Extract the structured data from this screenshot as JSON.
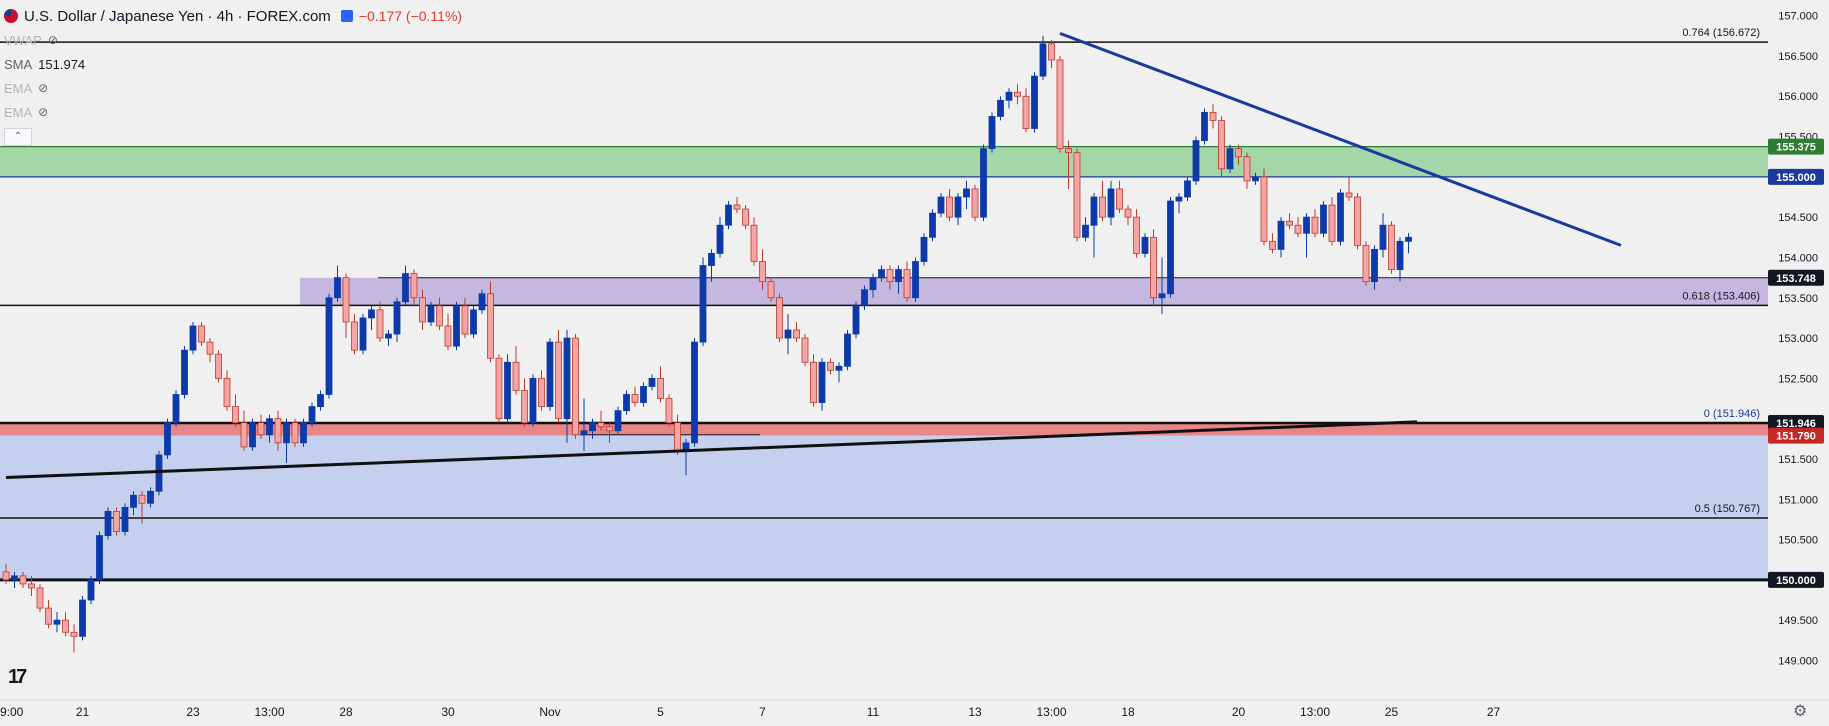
{
  "legend": {
    "symbol_title": "U.S. Dollar / Japanese Yen · 4h · FOREX.com",
    "change": "−0.177 (−0.11%)",
    "indicators": [
      {
        "name": "VWAP",
        "value": "",
        "hidden": true
      },
      {
        "name": "SMA",
        "value": "151.974",
        "hidden": false
      },
      {
        "name": "EMA",
        "value": "",
        "hidden": true
      },
      {
        "name": "EMA",
        "value": "",
        "hidden": true
      }
    ],
    "collapse_label": "⌃"
  },
  "icons": {
    "logo": "tradingview-logo",
    "settings": "settings-icon",
    "eye": "eye-off-icon"
  },
  "logo_text": "17",
  "settings_glyph": "⚙",
  "colors": {
    "background": "#f0f0f0",
    "up_candle": "#0d3aa8",
    "down_candle": "#f4a6a6",
    "down_outline": "#c0392b",
    "green_zone": "#a5d6a7",
    "purple_zone": "#c5b8e0",
    "red_zone": "#e57373",
    "blue_zone": "#c5d0ef",
    "trendline_blue": "#1a3a9e",
    "trendline_black": "#111111"
  },
  "chart_data": {
    "type": "candlestick",
    "symbol": "USDJPY",
    "timeframe": "4h",
    "ylim": [
      148.4,
      157.4
    ],
    "y_ticks": [
      "157.000",
      "156.500",
      "156.000",
      "155.500",
      "155.000",
      "154.500",
      "154.000",
      "153.500",
      "153.000",
      "152.500",
      "152.000",
      "151.500",
      "151.000",
      "150.500",
      "150.000",
      "149.500",
      "149.000"
    ],
    "x_labels": [
      {
        "bar": 0,
        "label": "9:00"
      },
      {
        "bar": 9,
        "label": "21"
      },
      {
        "bar": 22,
        "label": "23"
      },
      {
        "bar": 31,
        "label": "13:00"
      },
      {
        "bar": 40,
        "label": "28"
      },
      {
        "bar": 52,
        "label": "30"
      },
      {
        "bar": 64,
        "label": "Nov"
      },
      {
        "bar": 77,
        "label": "5"
      },
      {
        "bar": 89,
        "label": "7"
      },
      {
        "bar": 102,
        "label": "11"
      },
      {
        "bar": 114,
        "label": "13"
      },
      {
        "bar": 123,
        "label": "13:00"
      },
      {
        "bar": 132,
        "label": "18"
      },
      {
        "bar": 145,
        "label": "20"
      },
      {
        "bar": 154,
        "label": "13:00"
      },
      {
        "bar": 163,
        "label": "25"
      },
      {
        "bar": 175,
        "label": "27"
      }
    ],
    "zones": [
      {
        "name": "resistance",
        "from": 155.0,
        "to": 155.375
      },
      {
        "name": "support",
        "from": 153.406,
        "to": 153.748
      },
      {
        "name": "support-red",
        "from": 151.79,
        "to": 151.946
      },
      {
        "name": "support-blue",
        "from": 150.0,
        "to": 151.79
      }
    ],
    "hlines": [
      {
        "price": 156.672,
        "label": "0.764 (156.672)"
      },
      {
        "price": 153.406,
        "label": "0.618 (153.406)"
      },
      {
        "price": 151.946,
        "label": "0 (151.946)"
      },
      {
        "price": 150.767,
        "label": "0.5 (150.767)"
      },
      {
        "price": 150.0,
        "label": ""
      }
    ],
    "price_tags": [
      {
        "price": 155.375,
        "label": "155.375",
        "color": "#2e7d32"
      },
      {
        "price": 155.0,
        "label": "155.000",
        "color": "#1a3a9e"
      },
      {
        "price": 153.748,
        "label": "153.748",
        "color": "#131722"
      },
      {
        "price": 151.946,
        "label": "151.946",
        "color": "#131722"
      },
      {
        "price": 151.79,
        "label": "151.790",
        "color": "#c62828"
      },
      {
        "price": 150.0,
        "label": "150.000",
        "color": "#131722"
      }
    ],
    "trendlines": [
      {
        "name": "descending-resistance",
        "from": [
          124,
          156.78
        ],
        "to": [
          190,
          154.15
        ]
      },
      {
        "name": "rising-support",
        "from": [
          0,
          151.27
        ],
        "to": [
          166,
          151.96
        ]
      }
    ],
    "candles": [
      [
        150.1,
        150.2,
        149.95,
        150.0
      ],
      [
        150.0,
        150.1,
        149.9,
        150.05
      ],
      [
        150.05,
        150.1,
        149.9,
        149.95
      ],
      [
        149.95,
        150.05,
        149.8,
        149.9
      ],
      [
        149.9,
        149.95,
        149.6,
        149.65
      ],
      [
        149.65,
        149.75,
        149.4,
        149.45
      ],
      [
        149.45,
        149.6,
        149.35,
        149.5
      ],
      [
        149.5,
        149.6,
        149.3,
        149.35
      ],
      [
        149.35,
        149.45,
        149.1,
        149.3
      ],
      [
        149.3,
        149.8,
        149.25,
        149.75
      ],
      [
        149.75,
        150.05,
        149.7,
        150.0
      ],
      [
        150.0,
        150.6,
        149.95,
        150.55
      ],
      [
        150.55,
        150.9,
        150.5,
        150.85
      ],
      [
        150.85,
        150.9,
        150.55,
        150.6
      ],
      [
        150.6,
        150.95,
        150.55,
        150.9
      ],
      [
        150.9,
        151.1,
        150.8,
        151.05
      ],
      [
        151.05,
        151.1,
        150.7,
        150.95
      ],
      [
        150.95,
        151.15,
        150.9,
        151.1
      ],
      [
        151.1,
        151.6,
        151.05,
        151.55
      ],
      [
        151.55,
        152.0,
        151.5,
        151.95
      ],
      [
        151.95,
        152.35,
        151.9,
        152.3
      ],
      [
        152.3,
        152.9,
        152.25,
        152.85
      ],
      [
        152.85,
        153.2,
        152.8,
        153.15
      ],
      [
        153.15,
        153.2,
        152.9,
        152.95
      ],
      [
        152.95,
        153.0,
        152.7,
        152.8
      ],
      [
        152.8,
        152.85,
        152.45,
        152.5
      ],
      [
        152.5,
        152.6,
        152.1,
        152.15
      ],
      [
        152.15,
        152.3,
        151.9,
        151.95
      ],
      [
        151.95,
        152.1,
        151.6,
        151.65
      ],
      [
        151.65,
        152.0,
        151.6,
        151.95
      ],
      [
        151.95,
        152.05,
        151.75,
        151.8
      ],
      [
        151.8,
        152.05,
        151.7,
        152.0
      ],
      [
        152.0,
        152.1,
        151.6,
        151.7
      ],
      [
        151.7,
        152.0,
        151.45,
        151.95
      ],
      [
        151.95,
        152.0,
        151.65,
        151.7
      ],
      [
        151.7,
        152.0,
        151.65,
        151.95
      ],
      [
        151.95,
        152.2,
        151.9,
        152.15
      ],
      [
        152.15,
        152.35,
        152.1,
        152.3
      ],
      [
        152.3,
        153.55,
        152.25,
        153.5
      ],
      [
        153.5,
        153.9,
        153.45,
        153.75
      ],
      [
        153.75,
        153.8,
        153.0,
        153.2
      ],
      [
        153.2,
        153.3,
        152.8,
        152.85
      ],
      [
        152.85,
        153.3,
        152.8,
        153.25
      ],
      [
        153.25,
        153.4,
        153.1,
        153.35
      ],
      [
        153.35,
        153.45,
        152.95,
        153.0
      ],
      [
        153.0,
        153.1,
        152.9,
        153.05
      ],
      [
        153.05,
        153.5,
        152.95,
        153.45
      ],
      [
        153.45,
        153.9,
        153.4,
        153.8
      ],
      [
        153.8,
        153.85,
        153.4,
        153.5
      ],
      [
        153.5,
        153.6,
        153.1,
        153.2
      ],
      [
        153.2,
        153.45,
        153.15,
        153.4
      ],
      [
        153.4,
        153.5,
        153.1,
        153.15
      ],
      [
        153.15,
        153.3,
        152.85,
        152.9
      ],
      [
        152.9,
        153.45,
        152.85,
        153.4
      ],
      [
        153.4,
        153.5,
        153.0,
        153.05
      ],
      [
        153.05,
        153.4,
        153.0,
        153.35
      ],
      [
        153.35,
        153.6,
        153.3,
        153.55
      ],
      [
        153.55,
        153.7,
        152.7,
        152.75
      ],
      [
        152.75,
        152.8,
        151.95,
        152.0
      ],
      [
        152.0,
        152.8,
        151.95,
        152.7
      ],
      [
        152.7,
        152.9,
        152.3,
        152.35
      ],
      [
        152.35,
        152.5,
        151.9,
        151.95
      ],
      [
        151.95,
        152.55,
        151.9,
        152.5
      ],
      [
        152.5,
        152.6,
        152.1,
        152.15
      ],
      [
        152.15,
        153.0,
        152.1,
        152.95
      ],
      [
        152.95,
        153.1,
        151.95,
        152.0
      ],
      [
        152.0,
        153.1,
        151.7,
        153.0
      ],
      [
        153.0,
        153.05,
        151.75,
        151.8
      ],
      [
        151.8,
        152.25,
        151.6,
        151.85
      ],
      [
        151.85,
        152.0,
        151.75,
        151.95
      ],
      [
        151.95,
        152.1,
        151.85,
        151.9
      ],
      [
        151.9,
        151.95,
        151.7,
        151.85
      ],
      [
        151.85,
        152.15,
        151.8,
        152.1
      ],
      [
        152.1,
        152.35,
        152.05,
        152.3
      ],
      [
        152.3,
        152.4,
        152.15,
        152.2
      ],
      [
        152.2,
        152.45,
        152.15,
        152.4
      ],
      [
        152.4,
        152.55,
        152.35,
        152.5
      ],
      [
        152.5,
        152.65,
        152.2,
        152.25
      ],
      [
        152.25,
        152.3,
        151.9,
        151.95
      ],
      [
        151.95,
        152.05,
        151.55,
        151.6
      ],
      [
        151.6,
        151.75,
        151.3,
        151.7
      ],
      [
        151.7,
        153.0,
        151.65,
        152.95
      ],
      [
        152.95,
        154.0,
        152.9,
        153.9
      ],
      [
        153.9,
        154.1,
        153.7,
        154.05
      ],
      [
        154.05,
        154.5,
        154.0,
        154.4
      ],
      [
        154.4,
        154.7,
        154.35,
        154.65
      ],
      [
        154.65,
        154.75,
        154.55,
        154.6
      ],
      [
        154.6,
        154.65,
        154.35,
        154.4
      ],
      [
        154.4,
        154.5,
        153.9,
        153.95
      ],
      [
        153.95,
        154.1,
        153.6,
        153.7
      ],
      [
        153.7,
        153.75,
        153.45,
        153.5
      ],
      [
        153.5,
        153.55,
        152.95,
        153.0
      ],
      [
        153.0,
        153.3,
        152.8,
        153.1
      ],
      [
        153.1,
        153.2,
        152.95,
        153.0
      ],
      [
        153.0,
        153.05,
        152.65,
        152.7
      ],
      [
        152.7,
        152.8,
        152.15,
        152.2
      ],
      [
        152.2,
        152.75,
        152.1,
        152.7
      ],
      [
        152.7,
        152.75,
        152.55,
        152.6
      ],
      [
        152.6,
        152.7,
        152.45,
        152.65
      ],
      [
        152.65,
        153.1,
        152.6,
        153.05
      ],
      [
        153.05,
        153.45,
        153.0,
        153.4
      ],
      [
        153.4,
        153.65,
        153.35,
        153.6
      ],
      [
        153.6,
        153.8,
        153.5,
        153.75
      ],
      [
        153.75,
        153.9,
        153.7,
        153.85
      ],
      [
        153.85,
        153.9,
        153.6,
        153.7
      ],
      [
        153.7,
        153.9,
        153.55,
        153.85
      ],
      [
        153.85,
        153.95,
        153.45,
        153.5
      ],
      [
        153.5,
        154.0,
        153.45,
        153.95
      ],
      [
        153.95,
        154.3,
        153.9,
        154.25
      ],
      [
        154.25,
        154.6,
        154.2,
        154.55
      ],
      [
        154.55,
        154.8,
        154.5,
        154.75
      ],
      [
        154.75,
        154.85,
        154.45,
        154.5
      ],
      [
        154.5,
        154.8,
        154.4,
        154.75
      ],
      [
        154.75,
        154.95,
        154.6,
        154.85
      ],
      [
        154.85,
        154.9,
        154.45,
        154.5
      ],
      [
        154.5,
        155.4,
        154.45,
        155.35
      ],
      [
        155.35,
        155.8,
        155.3,
        155.75
      ],
      [
        155.75,
        156.0,
        155.7,
        155.95
      ],
      [
        155.95,
        156.1,
        155.85,
        156.05
      ],
      [
        156.05,
        156.15,
        155.9,
        156.0
      ],
      [
        156.0,
        156.1,
        155.55,
        155.6
      ],
      [
        155.6,
        156.3,
        155.55,
        156.25
      ],
      [
        156.25,
        156.75,
        156.2,
        156.65
      ],
      [
        156.65,
        156.7,
        156.35,
        156.45
      ],
      [
        156.45,
        156.5,
        155.3,
        155.35
      ],
      [
        155.35,
        155.45,
        154.85,
        155.3
      ],
      [
        155.3,
        155.35,
        154.2,
        154.25
      ],
      [
        154.25,
        154.5,
        154.2,
        154.4
      ],
      [
        154.4,
        154.8,
        154.0,
        154.75
      ],
      [
        154.75,
        154.95,
        154.45,
        154.5
      ],
      [
        154.5,
        154.95,
        154.4,
        154.85
      ],
      [
        154.85,
        154.95,
        154.55,
        154.6
      ],
      [
        154.6,
        154.65,
        154.4,
        154.5
      ],
      [
        154.5,
        154.6,
        154.0,
        154.05
      ],
      [
        154.05,
        154.3,
        154.0,
        154.25
      ],
      [
        154.25,
        154.35,
        153.4,
        153.5
      ],
      [
        153.5,
        154.0,
        153.3,
        153.55
      ],
      [
        153.55,
        154.75,
        153.5,
        154.7
      ],
      [
        154.7,
        154.8,
        154.55,
        154.75
      ],
      [
        154.75,
        155.0,
        154.7,
        154.95
      ],
      [
        154.95,
        155.5,
        154.9,
        155.45
      ],
      [
        155.45,
        155.85,
        155.4,
        155.8
      ],
      [
        155.8,
        155.9,
        155.6,
        155.7
      ],
      [
        155.7,
        155.75,
        155.0,
        155.1
      ],
      [
        155.1,
        155.4,
        155.05,
        155.35
      ],
      [
        155.35,
        155.4,
        155.15,
        155.25
      ],
      [
        155.25,
        155.3,
        154.85,
        154.95
      ],
      [
        154.95,
        155.05,
        154.9,
        155.0
      ],
      [
        155.0,
        155.1,
        154.15,
        154.2
      ],
      [
        154.2,
        154.3,
        154.05,
        154.1
      ],
      [
        154.1,
        154.5,
        154.0,
        154.45
      ],
      [
        154.45,
        154.55,
        154.35,
        154.4
      ],
      [
        154.4,
        154.5,
        154.25,
        154.3
      ],
      [
        154.3,
        154.55,
        154.0,
        154.5
      ],
      [
        154.5,
        154.6,
        154.25,
        154.3
      ],
      [
        154.3,
        154.7,
        154.25,
        154.65
      ],
      [
        154.65,
        154.75,
        154.15,
        154.2
      ],
      [
        154.2,
        154.85,
        154.15,
        154.8
      ],
      [
        154.8,
        155.0,
        154.7,
        154.75
      ],
      [
        154.75,
        154.8,
        154.1,
        154.15
      ],
      [
        154.15,
        154.2,
        153.65,
        153.7
      ],
      [
        153.7,
        154.15,
        153.6,
        154.1
      ],
      [
        154.1,
        154.55,
        154.0,
        154.4
      ],
      [
        154.4,
        154.45,
        153.8,
        153.85
      ],
      [
        153.85,
        154.25,
        153.7,
        154.2
      ],
      [
        154.2,
        154.3,
        154.05,
        154.25
      ]
    ]
  }
}
